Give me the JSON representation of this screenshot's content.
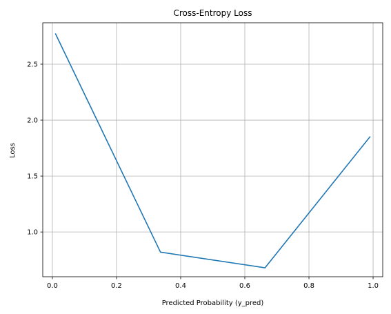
{
  "chart_data": {
    "type": "line",
    "title": "Cross-Entropy Loss",
    "xlabel": "Predicted Probability (y_pred)",
    "ylabel": "Loss",
    "xlim": [
      -0.03,
      1.03
    ],
    "ylim": [
      0.6,
      2.87
    ],
    "xticks": [
      0.0,
      0.2,
      0.4,
      0.6,
      0.8,
      1.0
    ],
    "xtick_labels": [
      "0.0",
      "0.2",
      "0.4",
      "0.6",
      "0.8",
      "1.0"
    ],
    "yticks": [
      1.0,
      1.5,
      2.0,
      2.5
    ],
    "ytick_labels": [
      "1.0",
      "1.5",
      "2.0",
      "2.5"
    ],
    "grid": true,
    "series": [
      {
        "color": "#1f77b4",
        "x": [
          0.01,
          0.337,
          0.663,
          0.99
        ],
        "y": [
          2.77,
          0.82,
          0.68,
          1.85
        ]
      }
    ]
  }
}
